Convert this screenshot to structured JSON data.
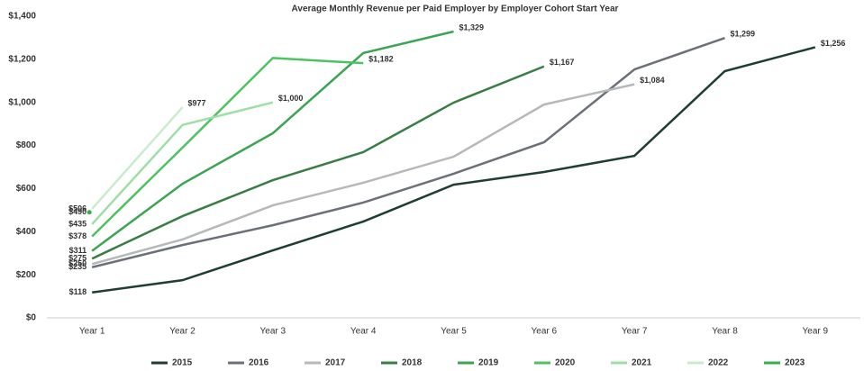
{
  "chart_data": {
    "type": "line",
    "title": "Average Monthly Revenue per Paid Employer by Employer Cohort Start Year",
    "categories": [
      "Year 1",
      "Year 2",
      "Year 3",
      "Year 4",
      "Year 5",
      "Year 6",
      "Year 7",
      "Year 8",
      "Year 9"
    ],
    "ylim": [
      0,
      1400
    ],
    "yticks": [
      {
        "value": 0,
        "label": "$0"
      },
      {
        "value": 200,
        "label": "$200"
      },
      {
        "value": 400,
        "label": "$400"
      },
      {
        "value": 600,
        "label": "$600"
      },
      {
        "value": 800,
        "label": "$800"
      },
      {
        "value": 1000,
        "label": "$1,000"
      },
      {
        "value": 1200,
        "label": "$1,200"
      },
      {
        "value": 1400,
        "label": "$1,400"
      }
    ],
    "grid": false,
    "legend": "bottom",
    "series": [
      {
        "name": "2015",
        "color": "#1f3d33",
        "values": [
          118,
          175,
          313,
          447,
          618,
          677,
          752,
          1145,
          1256
        ],
        "value_labels": [
          "$118",
          null,
          null,
          null,
          null,
          null,
          null,
          null,
          "$1,256"
        ]
      },
      {
        "name": "2016",
        "color": "#6b7079",
        "values": [
          235,
          338,
          430,
          535,
          669,
          815,
          1153,
          1299,
          null
        ],
        "value_labels": [
          "$235",
          null,
          null,
          null,
          null,
          null,
          null,
          "$1,299",
          null
        ]
      },
      {
        "name": "2017",
        "color": "#b5b9b9",
        "values": [
          250,
          364,
          522,
          627,
          748,
          990,
          1084,
          null,
          null
        ],
        "value_labels": [
          "$250",
          null,
          null,
          null,
          null,
          null,
          "$1,084",
          null,
          null
        ]
      },
      {
        "name": "2018",
        "color": "#3a7d44",
        "values": [
          275,
          472,
          639,
          769,
          999,
          1167,
          null,
          null,
          null
        ],
        "value_labels": [
          "$275",
          null,
          null,
          null,
          null,
          "$1,167",
          null,
          null,
          null
        ]
      },
      {
        "name": "2019",
        "color": "#3aa552",
        "values": [
          311,
          622,
          857,
          1229,
          1329,
          null,
          null,
          null,
          null
        ],
        "value_labels": [
          "$311",
          null,
          null,
          null,
          "$1,329",
          null,
          null,
          null,
          null
        ]
      },
      {
        "name": "2020",
        "color": "#4cc261",
        "values": [
          378,
          790,
          1206,
          1182,
          null,
          null,
          null,
          null,
          null
        ],
        "value_labels": [
          "$378",
          null,
          null,
          "$1,182",
          null,
          null,
          null,
          null,
          null
        ]
      },
      {
        "name": "2021",
        "color": "#9ddfa5",
        "values": [
          435,
          895,
          1000,
          null,
          null,
          null,
          null,
          null,
          null
        ],
        "value_labels": [
          "$435",
          null,
          "$1,000",
          null,
          null,
          null,
          null,
          null,
          null
        ]
      },
      {
        "name": "2022",
        "color": "#c9ecce",
        "values": [
          506,
          977,
          null,
          null,
          null,
          null,
          null,
          null,
          null
        ],
        "value_labels": [
          "$506",
          "$977",
          null,
          null,
          null,
          null,
          null,
          null,
          null
        ]
      },
      {
        "name": "2023",
        "color": "#2fb34a",
        "values": [
          490,
          null,
          null,
          null,
          null,
          null,
          null,
          null,
          null
        ],
        "value_labels": [
          "$490",
          null,
          null,
          null,
          null,
          null,
          null,
          null,
          null
        ]
      }
    ]
  }
}
